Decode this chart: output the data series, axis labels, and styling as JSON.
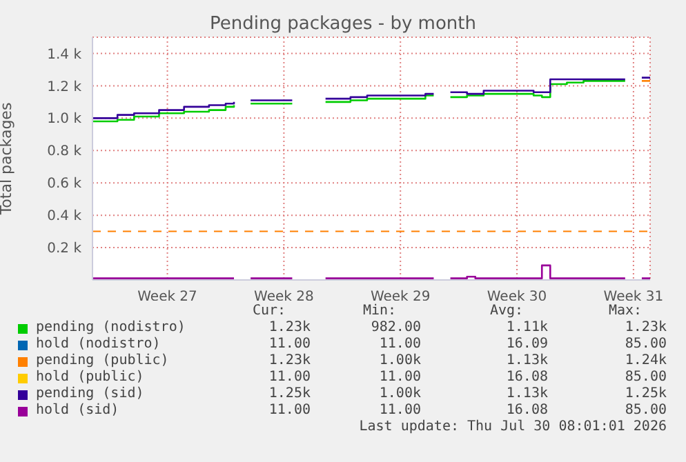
{
  "chart_data": {
    "type": "step",
    "title": "Pending packages - by month",
    "ylabel": "Total packages",
    "categories": [
      null,
      null,
      null,
      null,
      null,
      null,
      null,
      null,
      null,
      "Week 27",
      null,
      null,
      null,
      null,
      null,
      null,
      null,
      null,
      null,
      null,
      null,
      null,
      null,
      "Week 28",
      null,
      null,
      null,
      null,
      null,
      null,
      null,
      null,
      null,
      null,
      null,
      null,
      null,
      "Week 29",
      null,
      null,
      null,
      null,
      null,
      null,
      null,
      null,
      null,
      null,
      null,
      null,
      null,
      "Week 30",
      null,
      null,
      null,
      null,
      null,
      null,
      null,
      null,
      null,
      null,
      null,
      null,
      null,
      "Week 31",
      null,
      null
    ],
    "series": [
      {
        "name": "pending (nodistro)",
        "color": "#00cc00",
        "values": [
          980,
          980,
          980,
          990,
          990,
          1010,
          1010,
          1010,
          1030,
          1030,
          1030,
          1040,
          1040,
          1040,
          1050,
          1050,
          1070,
          1080,
          null,
          1090,
          1090,
          1090,
          1090,
          1090,
          1090,
          null,
          null,
          null,
          1100,
          1100,
          1100,
          1110,
          1110,
          1120,
          1120,
          1120,
          1120,
          1120,
          1120,
          1120,
          1140,
          1140,
          null,
          1130,
          1130,
          1140,
          1140,
          1150,
          1150,
          1150,
          1150,
          1150,
          1150,
          1140,
          1130,
          1210,
          1210,
          1220,
          1220,
          1230,
          1230,
          1230,
          1230,
          1230,
          1230,
          null,
          null,
          null
        ]
      },
      {
        "name": "hold (nodistro)",
        "color": "#0066b3",
        "values": [
          null,
          null,
          null,
          null,
          null,
          null,
          null,
          null,
          null,
          null,
          null,
          null,
          null,
          null,
          null,
          null,
          null,
          null,
          null,
          null,
          null,
          null,
          null,
          null,
          null,
          null,
          null,
          null,
          null,
          null,
          null,
          null,
          null,
          null,
          null,
          null,
          null,
          null,
          null,
          null,
          null,
          null,
          null,
          null,
          null,
          null,
          null,
          null,
          null,
          null,
          null,
          null,
          null,
          null,
          null,
          null,
          null,
          null,
          null,
          null,
          null,
          null,
          null,
          null,
          null,
          null,
          null,
          null
        ]
      },
      {
        "name": "pending (public)",
        "color": "#ff8000",
        "values": [
          null,
          null,
          null,
          null,
          null,
          null,
          null,
          null,
          null,
          null,
          null,
          null,
          null,
          null,
          null,
          null,
          null,
          null,
          null,
          null,
          null,
          null,
          null,
          null,
          null,
          null,
          null,
          null,
          null,
          null,
          null,
          null,
          null,
          null,
          null,
          null,
          null,
          null,
          null,
          null,
          null,
          null,
          null,
          null,
          null,
          null,
          null,
          null,
          null,
          null,
          null,
          null,
          null,
          null,
          null,
          null,
          null,
          null,
          null,
          null,
          null,
          null,
          null,
          null,
          null,
          null,
          1230,
          1230
        ]
      },
      {
        "name": "hold (public)",
        "color": "#ffcc00",
        "values": [
          null,
          null,
          null,
          null,
          null,
          null,
          null,
          null,
          null,
          null,
          null,
          null,
          null,
          null,
          null,
          null,
          null,
          null,
          null,
          null,
          null,
          null,
          null,
          null,
          null,
          null,
          null,
          null,
          null,
          null,
          null,
          null,
          null,
          null,
          null,
          null,
          null,
          null,
          null,
          null,
          null,
          null,
          null,
          null,
          null,
          null,
          null,
          null,
          null,
          null,
          null,
          null,
          null,
          null,
          null,
          null,
          null,
          null,
          null,
          null,
          null,
          null,
          null,
          null,
          null,
          null,
          null,
          null
        ]
      },
      {
        "name": "pending (sid)",
        "color": "#330099",
        "values": [
          1000,
          1000,
          1000,
          1020,
          1020,
          1030,
          1030,
          1030,
          1050,
          1050,
          1050,
          1070,
          1070,
          1070,
          1080,
          1080,
          1090,
          1100,
          null,
          1110,
          1110,
          1110,
          1110,
          1110,
          1110,
          null,
          null,
          null,
          1120,
          1120,
          1120,
          1130,
          1130,
          1140,
          1140,
          1140,
          1140,
          1140,
          1140,
          1140,
          1150,
          1150,
          null,
          1160,
          1160,
          1150,
          1150,
          1170,
          1170,
          1170,
          1170,
          1170,
          1170,
          1160,
          1160,
          1240,
          1240,
          1240,
          1240,
          1240,
          1240,
          1240,
          1240,
          1240,
          1240,
          null,
          1250,
          1250
        ]
      },
      {
        "name": "hold (sid)",
        "color": "#990099",
        "values": [
          10,
          10,
          10,
          10,
          10,
          10,
          10,
          10,
          10,
          10,
          10,
          10,
          10,
          10,
          10,
          10,
          10,
          10,
          null,
          10,
          10,
          10,
          10,
          10,
          10,
          null,
          null,
          null,
          10,
          10,
          10,
          10,
          10,
          10,
          10,
          10,
          10,
          10,
          10,
          10,
          10,
          10,
          null,
          10,
          10,
          20,
          10,
          10,
          10,
          10,
          10,
          10,
          10,
          10,
          90,
          10,
          10,
          10,
          10,
          10,
          10,
          10,
          10,
          10,
          10,
          null,
          10,
          10
        ]
      }
    ],
    "ylim": [
      0,
      1500
    ],
    "yticks": [
      {
        "value": 200,
        "label": "0.2 k"
      },
      {
        "value": 400,
        "label": "0.4 k"
      },
      {
        "value": 600,
        "label": "0.6 k"
      },
      {
        "value": 800,
        "label": "0.8 k"
      },
      {
        "value": 1000,
        "label": "1.0 k"
      },
      {
        "value": 1200,
        "label": "1.2 k"
      },
      {
        "value": 1400,
        "label": "1.4 k"
      }
    ],
    "ref_lines": [
      {
        "axis": "y",
        "value": 300,
        "color": "#ff8000",
        "line_style": "dashed"
      }
    ],
    "grid": true,
    "legend": "bottom",
    "annotations": [
      "Cur:",
      "Min:",
      "Avg:",
      "Max:",
      "1.23k",
      "982.00",
      "1.11k",
      "1.23k",
      "11.00",
      "11.00",
      "16.09",
      "85.00",
      "1.23k",
      "1.00k",
      "1.13k",
      "1.24k",
      "11.00",
      "11.00",
      "16.08",
      "85.00",
      "1.25k",
      "1.00k",
      "1.13k",
      "1.25k",
      "11.00",
      "11.00",
      "16.08",
      "85.00",
      "Last update: Thu Jul 30 08:01:01 2026"
    ]
  }
}
